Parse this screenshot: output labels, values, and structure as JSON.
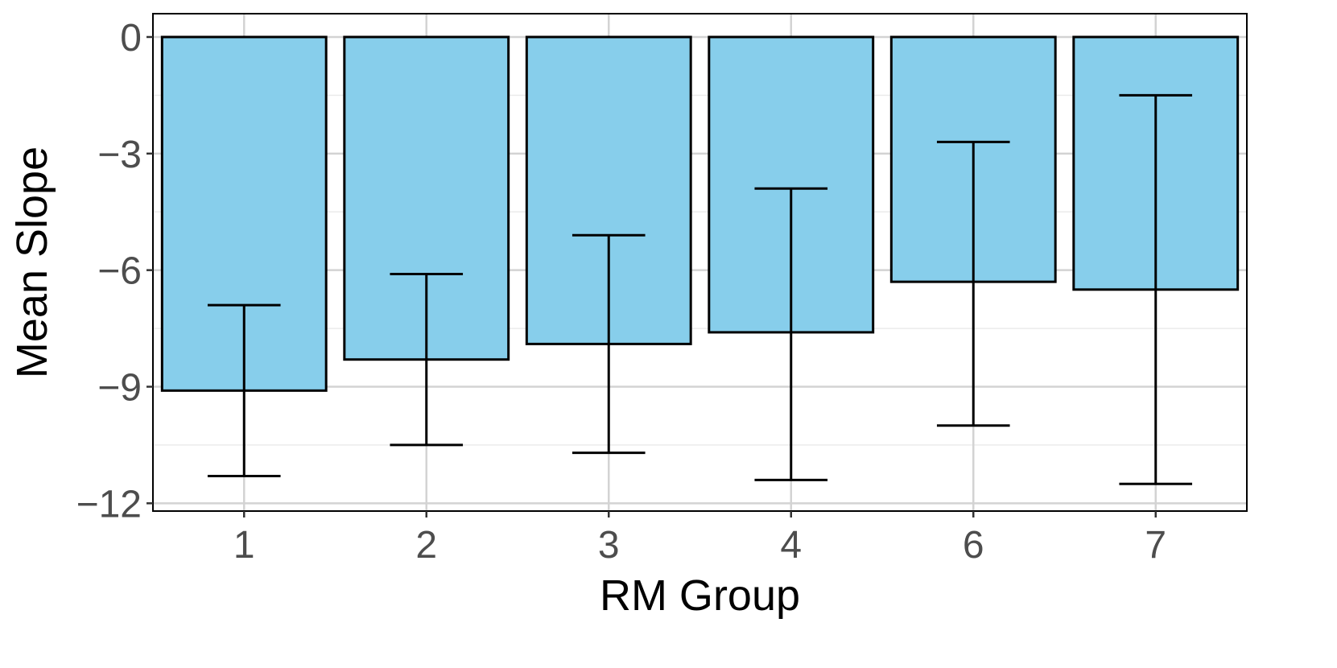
{
  "chart_data": {
    "type": "bar",
    "xlabel": "RM Group",
    "ylabel": "Mean Slope",
    "categories": [
      "1",
      "2",
      "3",
      "4",
      "6",
      "7"
    ],
    "values": [
      -9.1,
      -8.3,
      -7.9,
      -7.6,
      -6.3,
      -6.5
    ],
    "error_low": [
      -11.3,
      -10.5,
      -10.7,
      -11.4,
      -10.0,
      -11.5
    ],
    "error_high": [
      -6.9,
      -6.1,
      -5.1,
      -3.9,
      -2.7,
      -1.5
    ],
    "ylim": [
      -12.2,
      0.6
    ],
    "yticks": [
      0,
      -3,
      -6,
      -9,
      -12
    ],
    "ytick_labels": [
      "0",
      "−3",
      "−6",
      "−9",
      "−12"
    ],
    "grid": true,
    "colors": {
      "bar_fill": "#87ceeb",
      "bar_stroke": "#000000",
      "grid_major": "#d3d3d3",
      "grid_minor": "#ebebeb",
      "panel_border": "#000000"
    }
  }
}
